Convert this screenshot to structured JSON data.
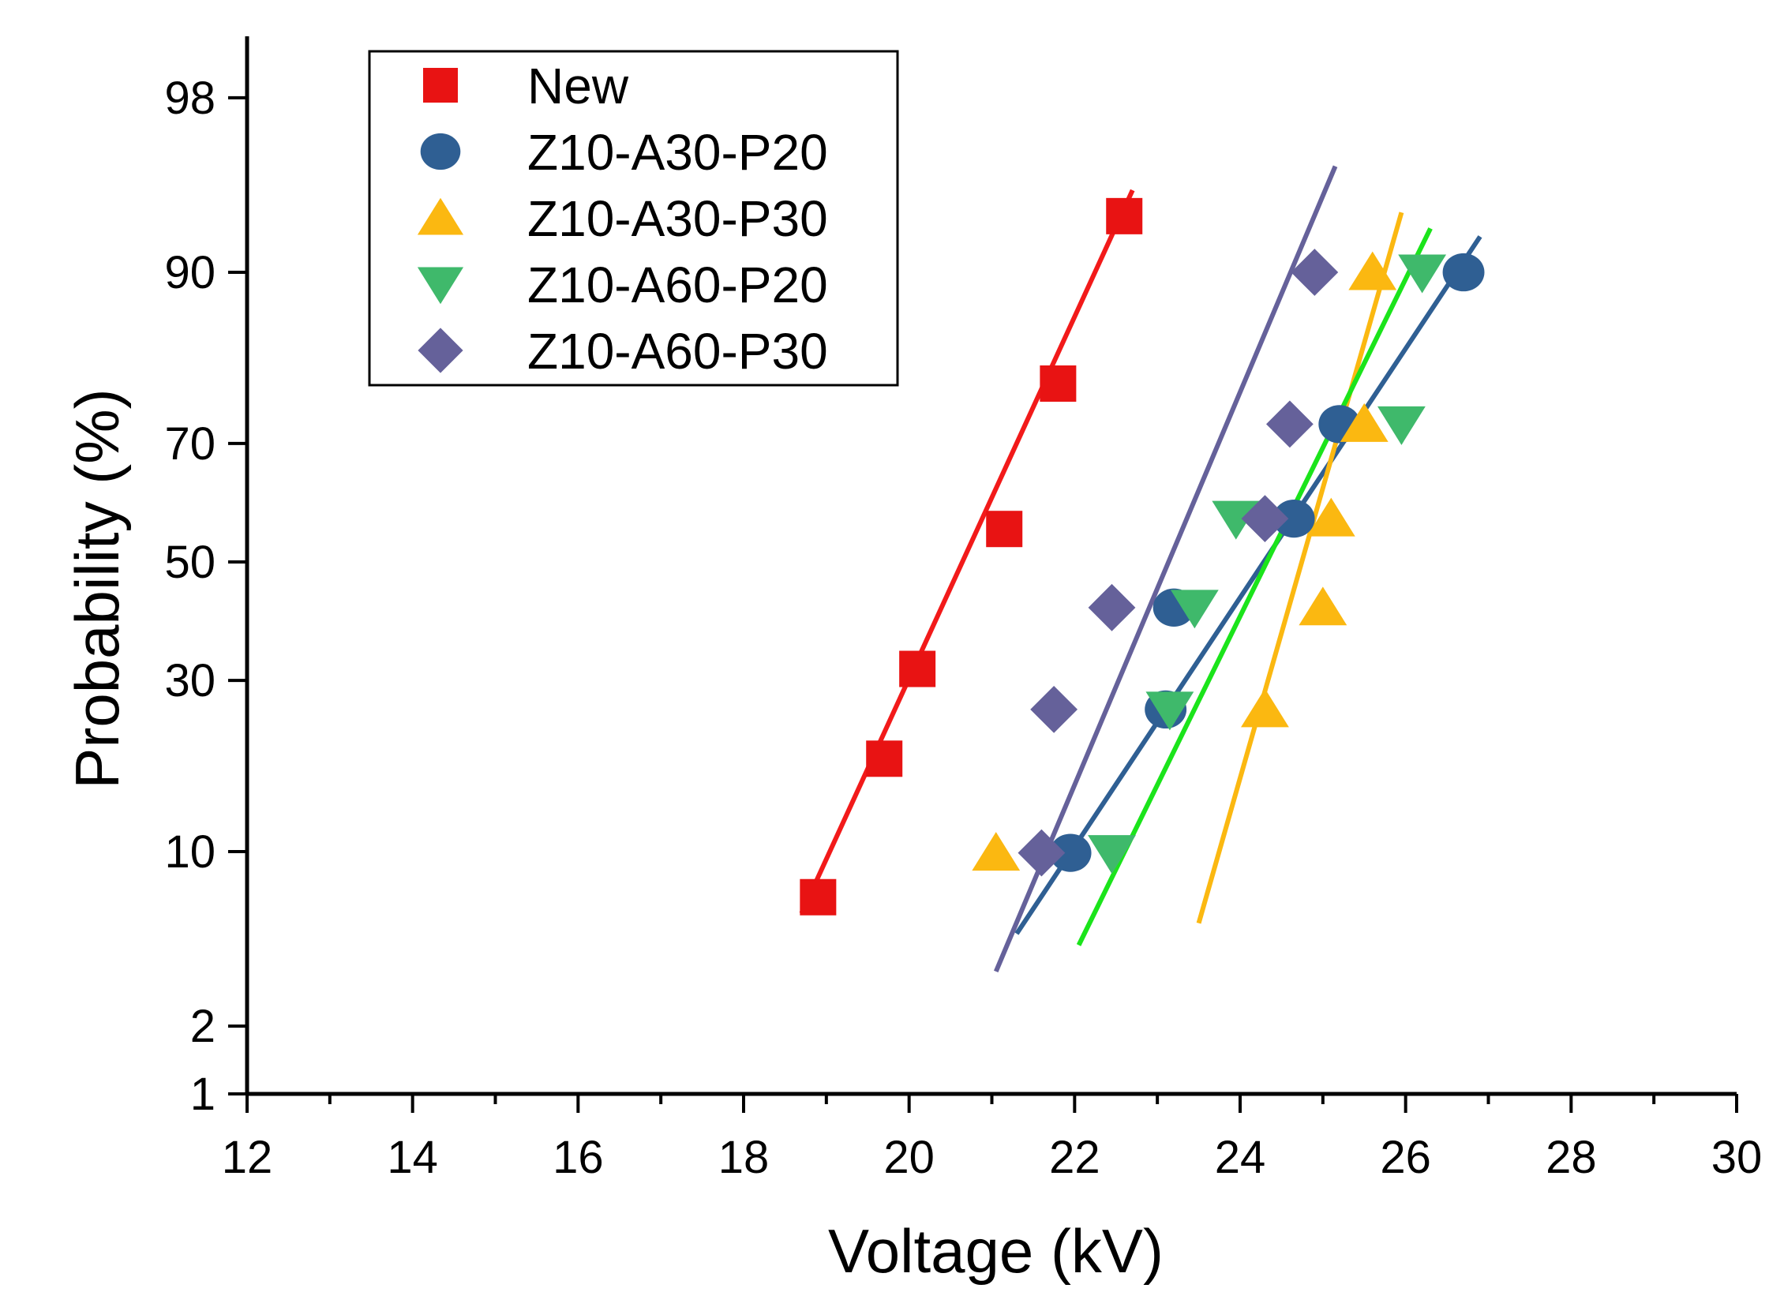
{
  "chart_data": {
    "type": "scatter",
    "title": "",
    "xlabel": "Voltage (kV)",
    "ylabel": "Probability (%)",
    "xlim": [
      12,
      30
    ],
    "ylim": [
      1,
      99
    ],
    "y_scale": "probability (normal quantile)",
    "xticks": [
      "12",
      "14",
      "16",
      "18",
      "20",
      "22",
      "24",
      "26",
      "28",
      "30"
    ],
    "yticks": [
      "1",
      "2",
      "10",
      "30",
      "50",
      "70",
      "90",
      "98"
    ],
    "grid": false,
    "legend_position": "top-left",
    "series": [
      {
        "name": "New",
        "marker": "square",
        "color": "#e81313",
        "line_color": "#f21a1a",
        "points": [
          {
            "x": 18.9,
            "y": 6.9
          },
          {
            "x": 19.7,
            "y": 19.2
          },
          {
            "x": 20.1,
            "y": 31.8
          },
          {
            "x": 21.15,
            "y": 55.8
          },
          {
            "x": 21.8,
            "y": 78.5
          },
          {
            "x": 22.6,
            "y": 93.7
          }
        ],
        "fit": [
          {
            "x": 18.7,
            "y": 6.0
          },
          {
            "x": 22.7,
            "y": 95.0
          }
        ]
      },
      {
        "name": "Z10-A30-P20",
        "marker": "circle",
        "color": "#2f5f93",
        "line_color": "#2f5f93",
        "points": [
          {
            "x": 21.95,
            "y": 9.9
          },
          {
            "x": 23.2,
            "y": 42.0
          },
          {
            "x": 23.1,
            "y": 25.7
          },
          {
            "x": 24.65,
            "y": 57.6
          },
          {
            "x": 25.2,
            "y": 72.9
          },
          {
            "x": 26.7,
            "y": 90.0
          }
        ],
        "fit": [
          {
            "x": 21.3,
            "y": 5.0
          },
          {
            "x": 26.9,
            "y": 92.5
          }
        ]
      },
      {
        "name": "Z10-A30-P30",
        "marker": "triangle-up",
        "color": "#fbb811",
        "line_color": "#fbb811",
        "points": [
          {
            "x": 21.05,
            "y": 9.9
          },
          {
            "x": 24.3,
            "y": 25.7
          },
          {
            "x": 25.0,
            "y": 42.0
          },
          {
            "x": 25.1,
            "y": 57.6
          },
          {
            "x": 25.5,
            "y": 72.9
          },
          {
            "x": 25.6,
            "y": 90.0
          }
        ],
        "fit": [
          {
            "x": 23.5,
            "y": 5.5
          },
          {
            "x": 25.95,
            "y": 93.9
          }
        ]
      },
      {
        "name": "Z10-A60-P20",
        "marker": "triangle-down",
        "color": "#3fb96b",
        "line_color": "#1be41b",
        "points": [
          {
            "x": 22.45,
            "y": 9.9
          },
          {
            "x": 23.15,
            "y": 25.7
          },
          {
            "x": 23.45,
            "y": 42.0
          },
          {
            "x": 23.95,
            "y": 57.6
          },
          {
            "x": 25.95,
            "y": 72.9
          },
          {
            "x": 26.2,
            "y": 90.0
          }
        ],
        "fit": [
          {
            "x": 22.05,
            "y": 4.5
          },
          {
            "x": 26.3,
            "y": 93.0
          }
        ]
      },
      {
        "name": "Z10-A60-P30",
        "marker": "diamond",
        "color": "#65619a",
        "line_color": "#65619a",
        "points": [
          {
            "x": 21.6,
            "y": 9.9
          },
          {
            "x": 21.75,
            "y": 25.7
          },
          {
            "x": 22.45,
            "y": 42.0
          },
          {
            "x": 24.3,
            "y": 57.6
          },
          {
            "x": 24.6,
            "y": 72.9
          },
          {
            "x": 24.9,
            "y": 90.0
          }
        ],
        "fit": [
          {
            "x": 21.05,
            "y": 3.5
          },
          {
            "x": 25.15,
            "y": 96.0
          }
        ]
      }
    ]
  }
}
